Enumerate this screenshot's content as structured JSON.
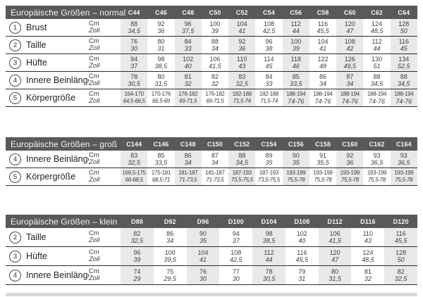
{
  "page": {
    "background": "#ffffff"
  },
  "colors": {
    "header_bg": "#58595b",
    "header_text": "#f5f5f5",
    "column_stripe": "#e9e9ea",
    "row_line": "#2c2c2c",
    "value_text": "#3d3d3d",
    "label_text": "#232323",
    "bottom_bar": "#d8d8d9"
  },
  "unit_labels": {
    "cm": "Cm",
    "zoll": "Zoll"
  },
  "tables": [
    {
      "id": "normal",
      "title": "Europäische Größen – normal",
      "columns": [
        "C44",
        "C46",
        "C48",
        "C50",
        "C52",
        "C54",
        "C56",
        "C58",
        "C60",
        "C62",
        "C64"
      ],
      "rows": [
        {
          "num": "1",
          "label": "Brust",
          "cm": [
            "88",
            "92",
            "96",
            "100",
            "104",
            "108",
            "112",
            "116",
            "120",
            "124",
            "128"
          ],
          "zoll": [
            "34,5",
            "36",
            "37,5",
            "39",
            "41",
            "42,5",
            "44",
            "45,5",
            "47",
            "48,5",
            "50"
          ]
        },
        {
          "num": "2",
          "label": "Taille",
          "cm": [
            "76",
            "80",
            "84",
            "88",
            "92",
            "96",
            "100",
            "104",
            "108",
            "112",
            "116"
          ],
          "zoll": [
            "30",
            "31",
            "33",
            "34",
            "36",
            "38",
            "39",
            "41",
            "42",
            "44",
            "45"
          ]
        },
        {
          "num": "3",
          "label": "Hüfte",
          "cm": [
            "94",
            "98",
            "102",
            "106",
            "110",
            "114",
            "118",
            "122",
            "126",
            "130",
            "134"
          ],
          "zoll": [
            "37",
            "38,5",
            "40",
            "41,5",
            "43",
            "45",
            "46",
            "48",
            "49,5",
            "51",
            "52,5"
          ]
        },
        {
          "num": "4",
          "label": "Innere Beinlänge",
          "cm": [
            "78",
            "80",
            "81",
            "82",
            "83",
            "84",
            "85",
            "86",
            "87",
            "88",
            "88"
          ],
          "zoll": [
            "30,5",
            "31,5",
            "32",
            "32",
            "32,5",
            "33",
            "33,5",
            "34",
            "34",
            "34,5",
            "34,5"
          ]
        },
        {
          "num": "5",
          "label": "Körpergröße",
          "cm": [
            "164-170",
            "170-176",
            "176-182",
            "176-182",
            "182-188",
            "182-188",
            "188-194",
            "188-194",
            "188-194",
            "188-194",
            "188-194"
          ],
          "zoll": [
            "64,5-66,5",
            "66,5-69",
            "69-71,5",
            "69-71,5",
            "71,5-74",
            "71,5-74",
            "74-76",
            "74-76",
            "74-76",
            "74-76",
            "74-76"
          ]
        }
      ]
    },
    {
      "id": "gross",
      "title": "Europäische Größen – groß",
      "columns": [
        "C144",
        "C146",
        "C148",
        "C150",
        "C152",
        "C154",
        "C156",
        "C158",
        "C160",
        "C162",
        "C164"
      ],
      "rows": [
        {
          "num": "4",
          "label": "Innere Beinlänge",
          "cm": [
            "83",
            "85",
            "86",
            "87",
            "88",
            "89",
            "90",
            "91",
            "92",
            "93",
            "93"
          ],
          "zoll": [
            "32,5",
            "33,5",
            "34",
            "34",
            "34,5",
            "35",
            "35",
            "35,5",
            "36",
            "36,5",
            "36,5"
          ]
        },
        {
          "num": "5",
          "label": "Körpergröße",
          "cm": [
            "169,5-175",
            "175-181",
            "181-187",
            "181-187",
            "187-193",
            "187-193",
            "193-199",
            "193-199",
            "193-199",
            "193-199",
            "193-199"
          ],
          "zoll": [
            "66-68,5",
            "68,5-71",
            "71-73,5",
            "71-73,5",
            "73,5-75,5",
            "73,5-75,5",
            "75,5-78",
            "75,5-78",
            "75,5-78",
            "75,5-78",
            "75,5-78"
          ]
        }
      ]
    },
    {
      "id": "klein",
      "title": "Europäische Größen – klein",
      "columns": [
        "D88",
        "D92",
        "D96",
        "D100",
        "D104",
        "D108",
        "D112",
        "D116",
        "D120"
      ],
      "rows": [
        {
          "num": "2",
          "label": "Taille",
          "cm": [
            "82",
            "86",
            "90",
            "94",
            "98",
            "102",
            "106",
            "110",
            "116"
          ],
          "zoll": [
            "32,5",
            "34",
            "35",
            "37",
            "38,5",
            "40",
            "41,5",
            "43",
            "45,5"
          ]
        },
        {
          "num": "3",
          "label": "Hüfte",
          "cm": [
            "96",
            "100",
            "104",
            "108",
            "112",
            "116",
            "120",
            "124",
            "128"
          ],
          "zoll": [
            "39",
            "39,5",
            "41",
            "42,5",
            "44",
            "45,5",
            "47",
            "48,5",
            "50"
          ]
        },
        {
          "num": "4",
          "label": "Innere Beinlänge",
          "cm": [
            "74",
            "75",
            "76",
            "77",
            "78",
            "79",
            "80",
            "81",
            "82"
          ],
          "zoll": [
            "29",
            "29,5",
            "30",
            "30",
            "30,5",
            "31",
            "31,5",
            "32",
            "32,5"
          ]
        }
      ]
    }
  ]
}
